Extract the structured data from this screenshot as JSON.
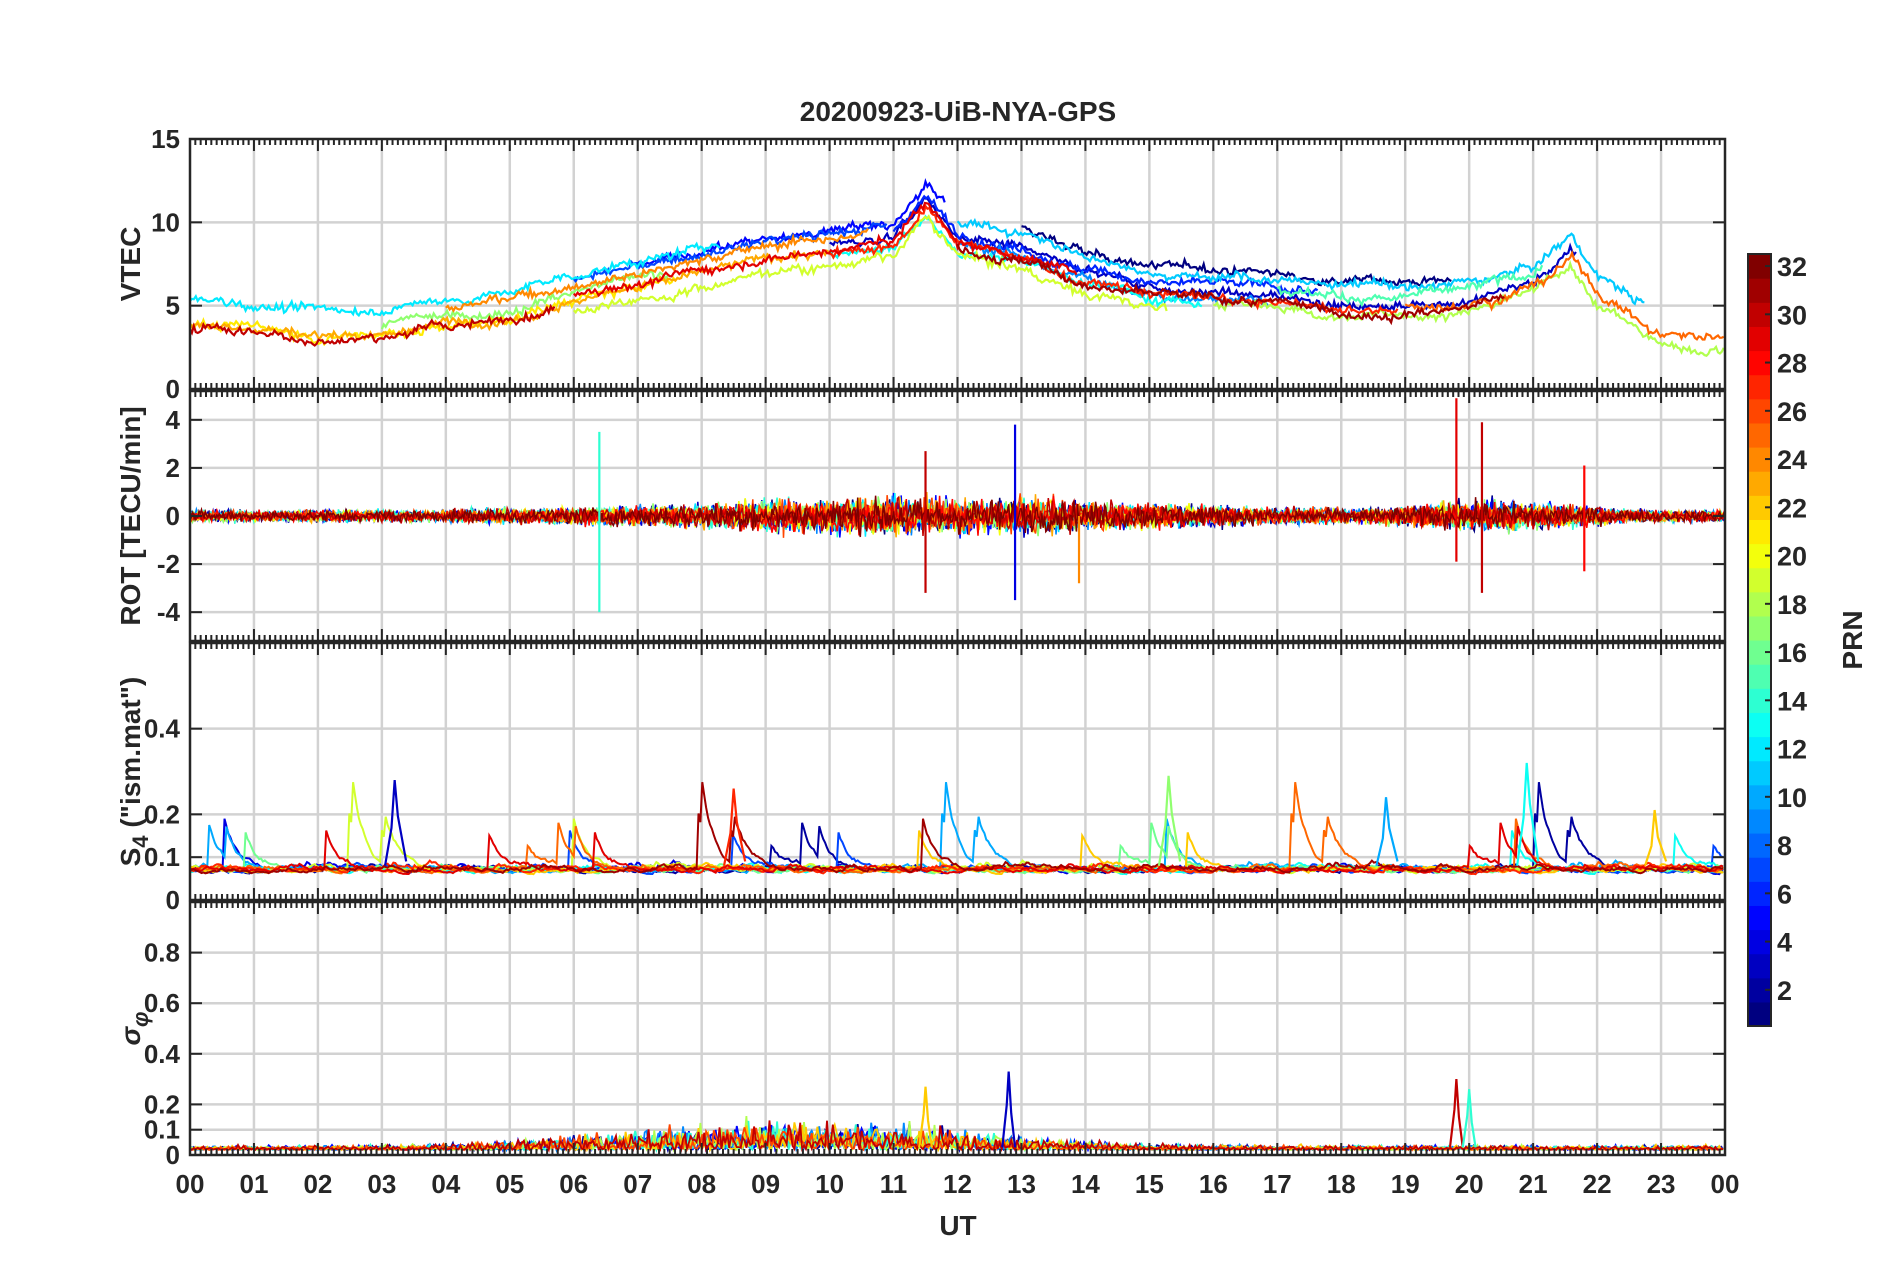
{
  "chart_data": {
    "type": "line",
    "title": "20200923-UiB-NYA-GPS",
    "xlabel": "UT",
    "x_ticks": [
      "00",
      "01",
      "02",
      "03",
      "04",
      "05",
      "06",
      "07",
      "08",
      "09",
      "10",
      "11",
      "12",
      "13",
      "14",
      "15",
      "16",
      "17",
      "18",
      "19",
      "20",
      "21",
      "22",
      "23",
      "00"
    ],
    "xlim_hours": [
      0,
      24
    ],
    "grid": true,
    "colormap": "jet",
    "colorbar": {
      "label": "PRN",
      "range": [
        1,
        32
      ],
      "ticks": [
        2,
        4,
        6,
        8,
        10,
        12,
        14,
        16,
        18,
        20,
        22,
        24,
        26,
        28,
        30,
        32
      ]
    },
    "panels": [
      {
        "id": "vtec",
        "ylabel": "VTEC",
        "ylim": [
          0,
          15
        ],
        "yticks": [
          0,
          5,
          10,
          15
        ],
        "envelope": [
          {
            "x": 0,
            "y": 4.5
          },
          {
            "x": 1,
            "y": 4.3
          },
          {
            "x": 2,
            "y": 3.8
          },
          {
            "x": 3,
            "y": 4.0
          },
          {
            "x": 4,
            "y": 4.5
          },
          {
            "x": 5,
            "y": 5.0
          },
          {
            "x": 6,
            "y": 6.0
          },
          {
            "x": 7,
            "y": 6.8
          },
          {
            "x": 8,
            "y": 7.5
          },
          {
            "x": 9,
            "y": 8.3
          },
          {
            "x": 10,
            "y": 8.8
          },
          {
            "x": 11,
            "y": 9.3
          },
          {
            "x": 11.5,
            "y": 11.5
          },
          {
            "x": 12,
            "y": 9.2
          },
          {
            "x": 13,
            "y": 8.5
          },
          {
            "x": 14,
            "y": 7.0
          },
          {
            "x": 15,
            "y": 6.3
          },
          {
            "x": 16,
            "y": 6.0
          },
          {
            "x": 17,
            "y": 5.7
          },
          {
            "x": 18,
            "y": 5.3
          },
          {
            "x": 19,
            "y": 5.2
          },
          {
            "x": 20,
            "y": 5.5
          },
          {
            "x": 21,
            "y": 6.5
          },
          {
            "x": 21.6,
            "y": 8.3
          },
          {
            "x": 22,
            "y": 6.0
          },
          {
            "x": 23,
            "y": 3.5
          },
          {
            "x": 24,
            "y": 3.2
          }
        ]
      },
      {
        "id": "rot",
        "ylabel": "ROT [TECU/min]",
        "ylim": [
          -5.2,
          5.2
        ],
        "yticks": [
          -4,
          -2,
          0,
          2,
          4
        ],
        "peaks": [
          {
            "x": 6.4,
            "y": 3.5,
            "prn": 14
          },
          {
            "x": 6.4,
            "y": -4.0,
            "prn": 14
          },
          {
            "x": 11.5,
            "y": 2.7,
            "prn": 30
          },
          {
            "x": 11.5,
            "y": -3.2,
            "prn": 30
          },
          {
            "x": 12.9,
            "y": 3.8,
            "prn": 4
          },
          {
            "x": 12.9,
            "y": -3.5,
            "prn": 4
          },
          {
            "x": 13.9,
            "y": -2.8,
            "prn": 24
          },
          {
            "x": 19.8,
            "y": 4.9,
            "prn": 29
          },
          {
            "x": 19.8,
            "y": -1.9,
            "prn": 29
          },
          {
            "x": 20.2,
            "y": 3.9,
            "prn": 30
          },
          {
            "x": 20.2,
            "y": -3.2,
            "prn": 30
          },
          {
            "x": 21.8,
            "y": 2.1,
            "prn": 28
          },
          {
            "x": 21.8,
            "y": -2.3,
            "prn": 28
          }
        ]
      },
      {
        "id": "s4",
        "ylabel": "S4 (\"ism.mat\")",
        "ylim": [
          0,
          0.6
        ],
        "yticks": [
          0,
          0.1,
          0.2,
          0.4
        ],
        "baseline": 0.07,
        "peaks": [
          {
            "x": 3.2,
            "y": 0.28,
            "prn": 3
          },
          {
            "x": 8.5,
            "y": 0.26,
            "prn": 27
          },
          {
            "x": 15.3,
            "y": 0.29,
            "prn": 17
          },
          {
            "x": 18.7,
            "y": 0.24,
            "prn": 10
          },
          {
            "x": 20.9,
            "y": 0.32,
            "prn": 13
          },
          {
            "x": 22.9,
            "y": 0.21,
            "prn": 22
          }
        ]
      },
      {
        "id": "sigma_phi",
        "ylabel": "σφ",
        "ylim": [
          0,
          1.0
        ],
        "yticks": [
          0,
          0.1,
          0.2,
          0.4,
          0.6,
          0.8
        ],
        "baseline": 0.02,
        "peaks": [
          {
            "x": 11.5,
            "y": 0.27,
            "prn": 22
          },
          {
            "x": 12.8,
            "y": 0.33,
            "prn": 3
          },
          {
            "x": 19.8,
            "y": 0.3,
            "prn": 30
          },
          {
            "x": 20.0,
            "y": 0.26,
            "prn": 14
          }
        ]
      }
    ]
  }
}
